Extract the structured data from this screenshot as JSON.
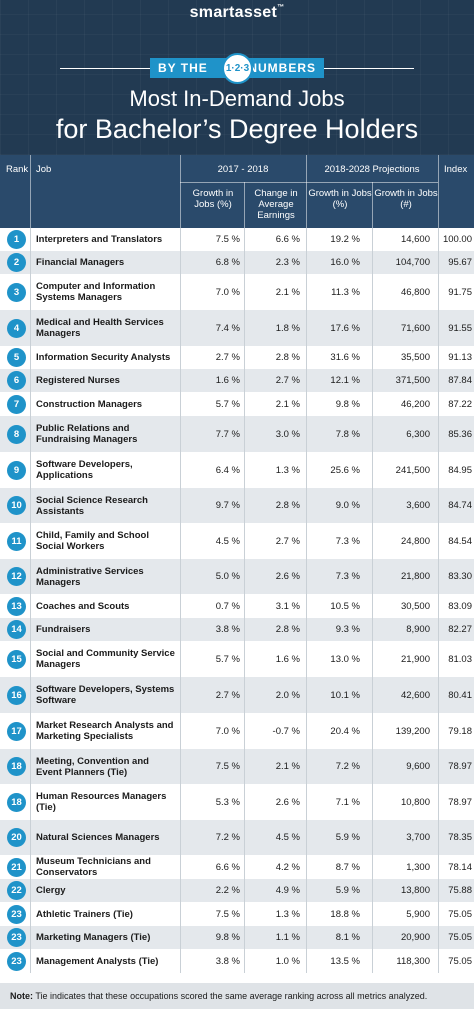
{
  "header": {
    "brand": "smartasset",
    "brand_mark": "™",
    "banner_left": "BY THE",
    "banner_badge": "1·2·3",
    "banner_right": "NUMBERS",
    "title_line1": "Most In-Demand Jobs",
    "title_line2": "for Bachelor’s Degree Holders"
  },
  "table": {
    "col_rank": "Rank",
    "col_job": "Job",
    "group_2017": "2017 - 2018",
    "group_proj": "2018-2028 Projections",
    "col_index": "Index",
    "sub_growth_pct": "Growth in Jobs (%)",
    "sub_change_earnings": "Change in Average Earnings",
    "sub_proj_growth_pct": "Growth in Jobs (%)",
    "sub_proj_growth_num": "Growth in Jobs (#)",
    "rows": [
      {
        "rank": "1",
        "job": "Interpreters and Translators",
        "g": "7.5 %",
        "e": "6.6 %",
        "pg": "19.2 %",
        "pn": "14,600",
        "idx": "100.00"
      },
      {
        "rank": "2",
        "job": "Financial Managers",
        "g": "6.8 %",
        "e": "2.3 %",
        "pg": "16.0 %",
        "pn": "104,700",
        "idx": "95.67"
      },
      {
        "rank": "3",
        "job": "Computer and Information Systems Managers",
        "g": "7.0 %",
        "e": "2.1 %",
        "pg": "11.3 %",
        "pn": "46,800",
        "idx": "91.75"
      },
      {
        "rank": "4",
        "job": "Medical and Health Services Managers",
        "g": "7.4 %",
        "e": "1.8 %",
        "pg": "17.6 %",
        "pn": "71,600",
        "idx": "91.55"
      },
      {
        "rank": "5",
        "job": "Information Security Analysts",
        "g": "2.7 %",
        "e": "2.8 %",
        "pg": "31.6 %",
        "pn": "35,500",
        "idx": "91.13"
      },
      {
        "rank": "6",
        "job": "Registered Nurses",
        "g": "1.6 %",
        "e": "2.7 %",
        "pg": "12.1 %",
        "pn": "371,500",
        "idx": "87.84"
      },
      {
        "rank": "7",
        "job": "Construction Managers",
        "g": "5.7 %",
        "e": "2.1 %",
        "pg": "9.8 %",
        "pn": "46,200",
        "idx": "87.22"
      },
      {
        "rank": "8",
        "job": "Public Relations and Fundraising Managers",
        "g": "7.7 %",
        "e": "3.0 %",
        "pg": "7.8 %",
        "pn": "6,300",
        "idx": "85.36"
      },
      {
        "rank": "9",
        "job": "Software Developers, Applications",
        "g": "6.4 %",
        "e": "1.3 %",
        "pg": "25.6 %",
        "pn": "241,500",
        "idx": "84.95"
      },
      {
        "rank": "10",
        "job": "Social Science Research Assistants",
        "g": "9.7 %",
        "e": "2.8 %",
        "pg": "9.0 %",
        "pn": "3,600",
        "idx": "84.74"
      },
      {
        "rank": "11",
        "job": "Child, Family and School Social Workers",
        "g": "4.5 %",
        "e": "2.7 %",
        "pg": "7.3 %",
        "pn": "24,800",
        "idx": "84.54"
      },
      {
        "rank": "12",
        "job": "Administrative Services Managers",
        "g": "5.0 %",
        "e": "2.6 %",
        "pg": "7.3 %",
        "pn": "21,800",
        "idx": "83.30"
      },
      {
        "rank": "13",
        "job": "Coaches and Scouts",
        "g": "0.7 %",
        "e": "3.1 %",
        "pg": "10.5 %",
        "pn": "30,500",
        "idx": "83.09"
      },
      {
        "rank": "14",
        "job": "Fundraisers",
        "g": "3.8 %",
        "e": "2.8 %",
        "pg": "9.3 %",
        "pn": "8,900",
        "idx": "82.27"
      },
      {
        "rank": "15",
        "job": "Social and Community Service Managers",
        "g": "5.7 %",
        "e": "1.6 %",
        "pg": "13.0 %",
        "pn": "21,900",
        "idx": "81.03"
      },
      {
        "rank": "16",
        "job": "Software Developers, Systems Software",
        "g": "2.7 %",
        "e": "2.0 %",
        "pg": "10.1 %",
        "pn": "42,600",
        "idx": "80.41"
      },
      {
        "rank": "17",
        "job": "Market Research Analysts and Marketing Specialists",
        "g": "7.0 %",
        "e": "-0.7 %",
        "pg": "20.4 %",
        "pn": "139,200",
        "idx": "79.18"
      },
      {
        "rank": "18",
        "job": "Meeting, Convention and Event Planners (Tie)",
        "g": "7.5 %",
        "e": "2.1 %",
        "pg": "7.2 %",
        "pn": "9,600",
        "idx": "78.97"
      },
      {
        "rank": "18",
        "job": "Human Resources Managers (Tie)",
        "g": "5.3 %",
        "e": "2.6 %",
        "pg": "7.1 %",
        "pn": "10,800",
        "idx": "78.97"
      },
      {
        "rank": "20",
        "job": "Natural Sciences Managers",
        "g": "7.2 %",
        "e": "4.5 %",
        "pg": "5.9 %",
        "pn": "3,700",
        "idx": "78.35"
      },
      {
        "rank": "21",
        "job": "Museum Technicians and Conservators",
        "g": "6.6 %",
        "e": "4.2 %",
        "pg": "8.7 %",
        "pn": "1,300",
        "idx": "78.14"
      },
      {
        "rank": "22",
        "job": "Clergy",
        "g": "2.2 %",
        "e": "4.9 %",
        "pg": "5.9 %",
        "pn": "13,800",
        "idx": "75.88"
      },
      {
        "rank": "23",
        "job": "Athletic Trainers (Tie)",
        "g": "7.5 %",
        "e": "1.3 %",
        "pg": "18.8 %",
        "pn": "5,900",
        "idx": "75.05"
      },
      {
        "rank": "23",
        "job": "Marketing Managers (Tie)",
        "g": "9.8 %",
        "e": "1.1 %",
        "pg": "8.1 %",
        "pn": "20,900",
        "idx": "75.05"
      },
      {
        "rank": "23",
        "job": "Management Analysts (Tie)",
        "g": "3.8 %",
        "e": "1.0 %",
        "pg": "13.5 %",
        "pn": "118,300",
        "idx": "75.05"
      }
    ]
  },
  "note": {
    "label": "Note:",
    "text": "Tie indicates that these occupations scored the same average ranking across all metrics analyzed."
  }
}
